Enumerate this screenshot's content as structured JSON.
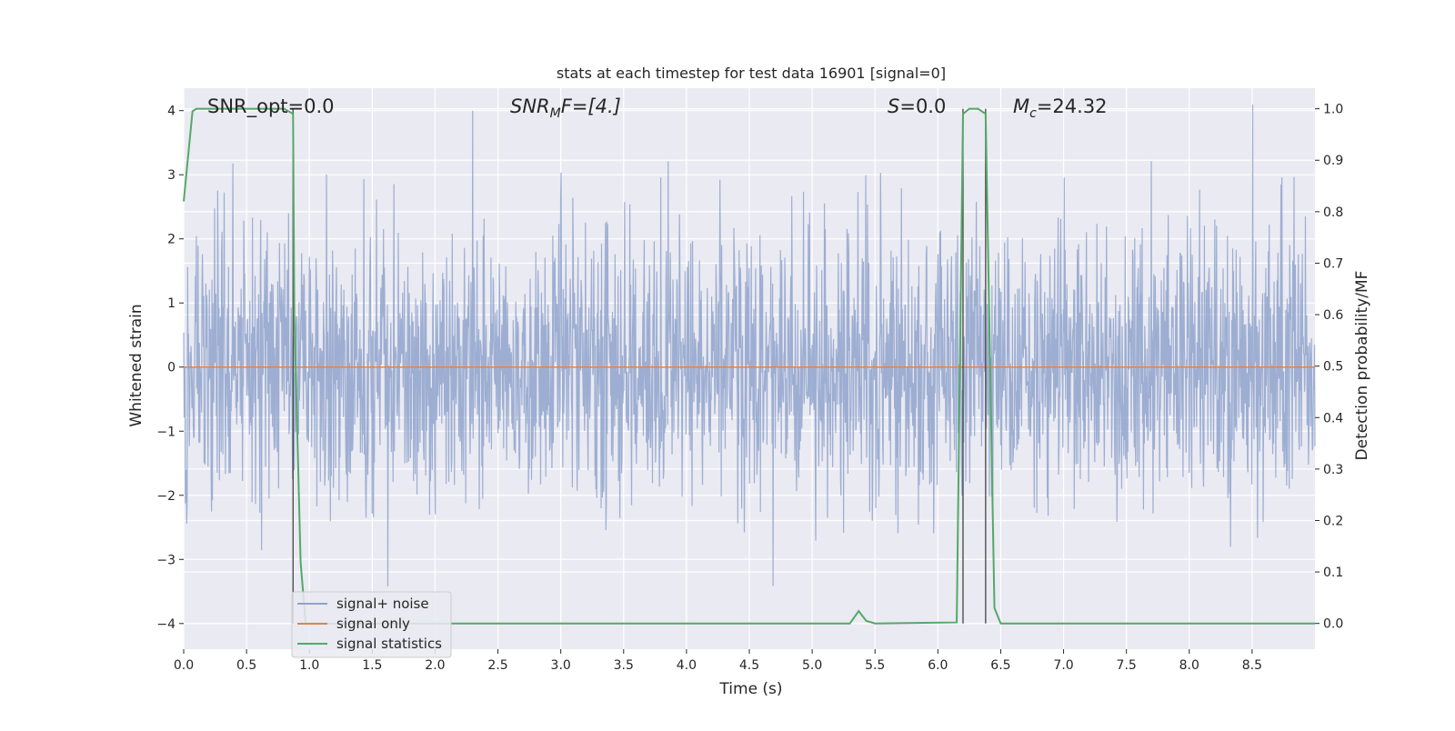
{
  "chart_data": {
    "type": "line",
    "title": "stats at each timestep for test data 16901 [signal=0]",
    "xlabel": "Time (s)",
    "ylabel": "Whitened strain",
    "y2label": "Detection probability/MF",
    "xlim": [
      0.0,
      9.0
    ],
    "ylim": [
      -4.4,
      4.35
    ],
    "y2lim": [
      -0.05,
      1.04
    ],
    "xticks": [
      0.0,
      0.5,
      1.0,
      1.5,
      2.0,
      2.5,
      3.0,
      3.5,
      4.0,
      4.5,
      5.0,
      5.5,
      6.0,
      6.5,
      7.0,
      7.5,
      8.0,
      8.5
    ],
    "xtick_labels": [
      "0.0",
      "0.5",
      "1.0",
      "1.5",
      "2.0",
      "2.5",
      "3.0",
      "3.5",
      "4.0",
      "4.5",
      "5.0",
      "5.5",
      "6.0",
      "6.5",
      "7.0",
      "7.5",
      "8.0",
      "8.5"
    ],
    "yticks": [
      -4,
      -3,
      -2,
      -1,
      0,
      1,
      2,
      3,
      4
    ],
    "ytick_labels": [
      "−4",
      "−3",
      "−2",
      "−1",
      "0",
      "1",
      "2",
      "3",
      "4"
    ],
    "y2ticks": [
      0.0,
      0.1,
      0.2,
      0.3,
      0.4,
      0.5,
      0.6,
      0.7,
      0.8,
      0.9,
      1.0
    ],
    "y2tick_labels": [
      "0.0",
      "0.1",
      "0.2",
      "0.3",
      "0.4",
      "0.5",
      "0.6",
      "0.7",
      "0.8",
      "0.9",
      "1.0"
    ],
    "grid": true,
    "legend_position": "lower-left",
    "annotations": {
      "snr_opt": "SNR_opt=0.0",
      "snr_mf_main": "SNR",
      "snr_mf_sub": "M",
      "snr_mf_rest": "F=[4.]",
      "s_main": "S",
      "s_rest": "=0.0",
      "mc_main": "M",
      "mc_sub": "c",
      "mc_rest": "=24.32"
    },
    "series": [
      {
        "name": "signal+ noise",
        "color": "#8fa3cc",
        "axis": "left",
        "style": "noise",
        "sigma": 0.85,
        "duration": 9.0
      },
      {
        "name": "signal only",
        "color": "#dd8452",
        "axis": "left",
        "x": [
          0.0,
          9.0
        ],
        "y": [
          0.0,
          0.0
        ]
      },
      {
        "name": "signal statistics",
        "color": "#55a868",
        "axis": "right",
        "x": [
          0.0,
          0.07,
          0.1,
          0.2,
          0.5,
          0.8,
          0.87,
          0.88,
          0.93,
          0.97,
          1.05,
          2.0,
          3.7,
          5.3,
          5.37,
          5.43,
          5.5,
          6.15,
          6.2,
          6.25,
          6.32,
          6.38,
          6.45,
          6.5,
          9.0
        ],
        "y": [
          0.82,
          0.995,
          1.0,
          1.0,
          1.0,
          1.0,
          0.99,
          0.6,
          0.12,
          0.0,
          0.0,
          0.0,
          0.0,
          0.0,
          0.024,
          0.005,
          0.0,
          0.002,
          0.99,
          1.0,
          1.0,
          0.99,
          0.03,
          0.0,
          0.0
        ]
      }
    ],
    "vlines": [
      {
        "x": 0.87,
        "y0": 0.0,
        "y1": 1.0
      },
      {
        "x": 6.2,
        "y0": 0.0,
        "y1": 1.0
      },
      {
        "x": 6.38,
        "y0": 0.0,
        "y1": 1.0
      }
    ]
  }
}
